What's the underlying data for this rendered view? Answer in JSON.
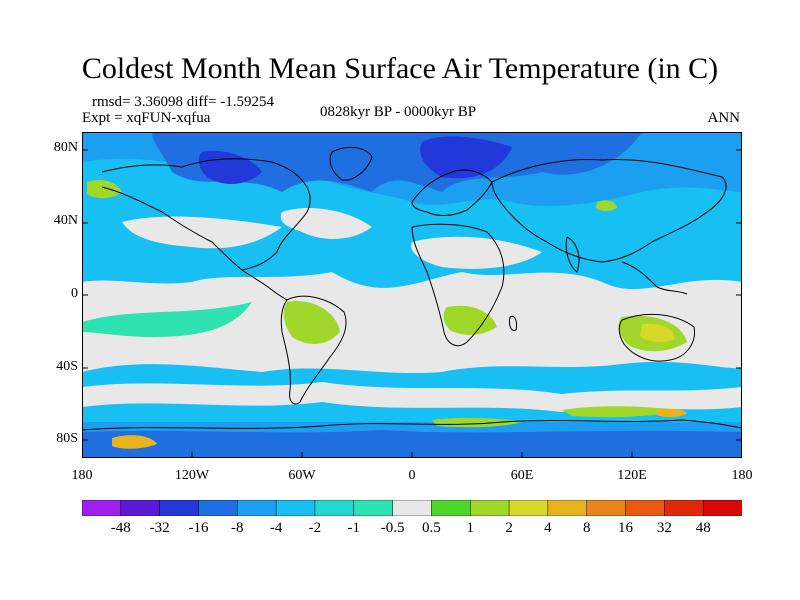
{
  "figure": {
    "title": "Coldest Month Mean Surface Air Temperature (in C)",
    "stats": "rmsd= 3.36098 diff= -1.59254",
    "experiment": "Expt = xqFUN-xqfua",
    "period": "0828kyr BP - 0000kyr BP",
    "season": "ANN"
  },
  "axes": {
    "lat_labels": [
      "80N",
      "40N",
      "0",
      "40S",
      "80S"
    ],
    "lon_labels": [
      "180",
      "120W",
      "60W",
      "0",
      "60E",
      "120E",
      "180"
    ]
  },
  "colorbar": {
    "labels": [
      "-48",
      "-32",
      "-16",
      "-8",
      "-4",
      "-2",
      "-1",
      "-0.5",
      "0.5",
      "1",
      "2",
      "4",
      "8",
      "16",
      "32",
      "48"
    ],
    "colors": [
      "#a020f0",
      "#5a1ad8",
      "#2238d8",
      "#1f6fe0",
      "#1c9ff0",
      "#18bff2",
      "#20d8d0",
      "#2ee3b0",
      "#e8e8e8",
      "#50d62a",
      "#9fd82a",
      "#d8d82a",
      "#e8b41e",
      "#e8861a",
      "#e85a14",
      "#e02a0a",
      "#d80808"
    ]
  },
  "colors": {
    "ocean_neutral": "#e8e8e8",
    "cool_light": "#18bff2",
    "cool_mid": "#1c9ff0",
    "cool_deep": "#1f6fe0",
    "cool_max": "#2238d8",
    "cool_teal": "#2ee3b0",
    "warm_green": "#9fd82a",
    "warm_yellow": "#d8d82a",
    "warm_orange": "#e8b41e",
    "coastline": "#000000"
  }
}
